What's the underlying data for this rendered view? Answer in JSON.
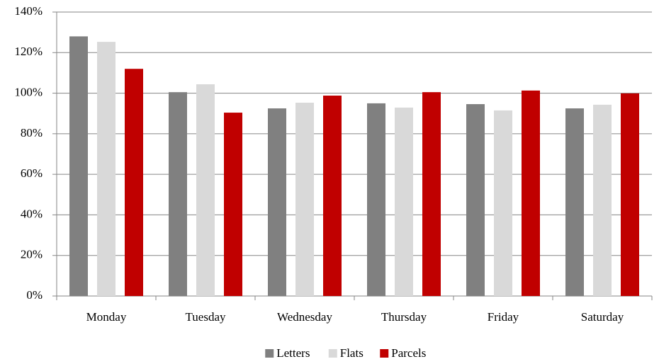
{
  "chart_data": {
    "type": "bar",
    "categories": [
      "Monday",
      "Tuesday",
      "Wednesday",
      "Thursday",
      "Friday",
      "Saturday"
    ],
    "series": [
      {
        "name": "Letters",
        "color": "#808080",
        "values": [
          128,
          100.5,
          92.5,
          95,
          94.6,
          92.5
        ]
      },
      {
        "name": "Flats",
        "color": "#d9d9d9",
        "values": [
          125.3,
          104.4,
          95.3,
          92.9,
          91.5,
          94.3
        ]
      },
      {
        "name": "Parcels",
        "color": "#c00000",
        "values": [
          112,
          90.4,
          98.8,
          100.5,
          101.3,
          99.9
        ]
      }
    ],
    "ylim": [
      0,
      140
    ],
    "yticks": [
      {
        "value": 0,
        "label": "0%"
      },
      {
        "value": 20,
        "label": "20%"
      },
      {
        "value": 40,
        "label": "40%"
      },
      {
        "value": 60,
        "label": "60%"
      },
      {
        "value": 80,
        "label": "80%"
      },
      {
        "value": 100,
        "label": "100%"
      },
      {
        "value": 120,
        "label": "120%"
      },
      {
        "value": 140,
        "label": "140%"
      }
    ],
    "grid": true,
    "legend": "bottom"
  }
}
